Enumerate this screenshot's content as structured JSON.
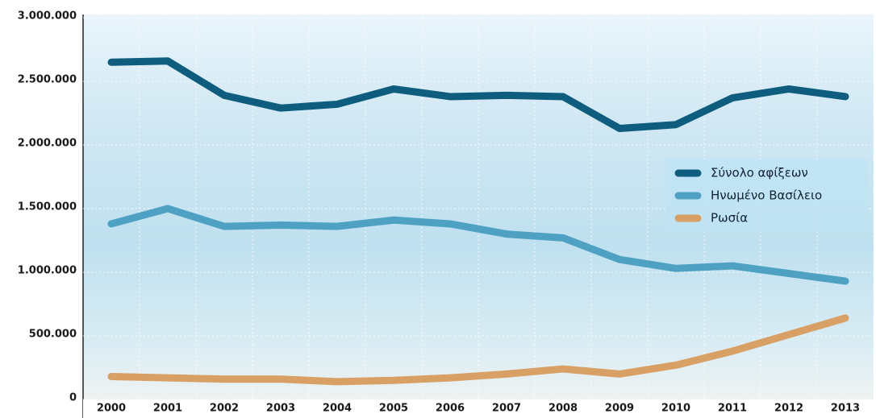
{
  "chart_data": {
    "type": "line",
    "categories": [
      "2000",
      "2001",
      "2002",
      "2003",
      "2004",
      "2005",
      "2006",
      "2007",
      "2008",
      "2009",
      "2010",
      "2011",
      "2012",
      "2013"
    ],
    "series": [
      {
        "name": "Σύνολο αφίξεων",
        "color": "#0e5d7e",
        "values": [
          2650000,
          2660000,
          2390000,
          2290000,
          2320000,
          2440000,
          2380000,
          2390000,
          2380000,
          2130000,
          2160000,
          2370000,
          2440000,
          2380000
        ]
      },
      {
        "name": "Ηνωμένο Βασίλειο",
        "color": "#4ea1c2",
        "values": [
          1380000,
          1500000,
          1360000,
          1370000,
          1360000,
          1410000,
          1380000,
          1300000,
          1270000,
          1100000,
          1030000,
          1050000,
          990000,
          930000
        ]
      },
      {
        "name": "Ρωσία",
        "color": "#d9a066",
        "values": [
          180000,
          170000,
          160000,
          160000,
          140000,
          150000,
          170000,
          200000,
          240000,
          200000,
          270000,
          380000,
          510000,
          640000
        ]
      }
    ],
    "ylim": [
      0,
      3000000
    ],
    "yticks": [
      0,
      {
        "value": 500000,
        "label": "500.000"
      },
      {
        "value": 1000000,
        "label": "1.000.000"
      },
      {
        "value": 1500000,
        "label": "1.500.000"
      },
      {
        "value": 2000000,
        "label": "2.000.000"
      },
      {
        "value": 2500000,
        "label": "2.500.000"
      },
      {
        "value": 3000000,
        "label": "3.000.000"
      }
    ],
    "grid": true,
    "legend": "right"
  }
}
